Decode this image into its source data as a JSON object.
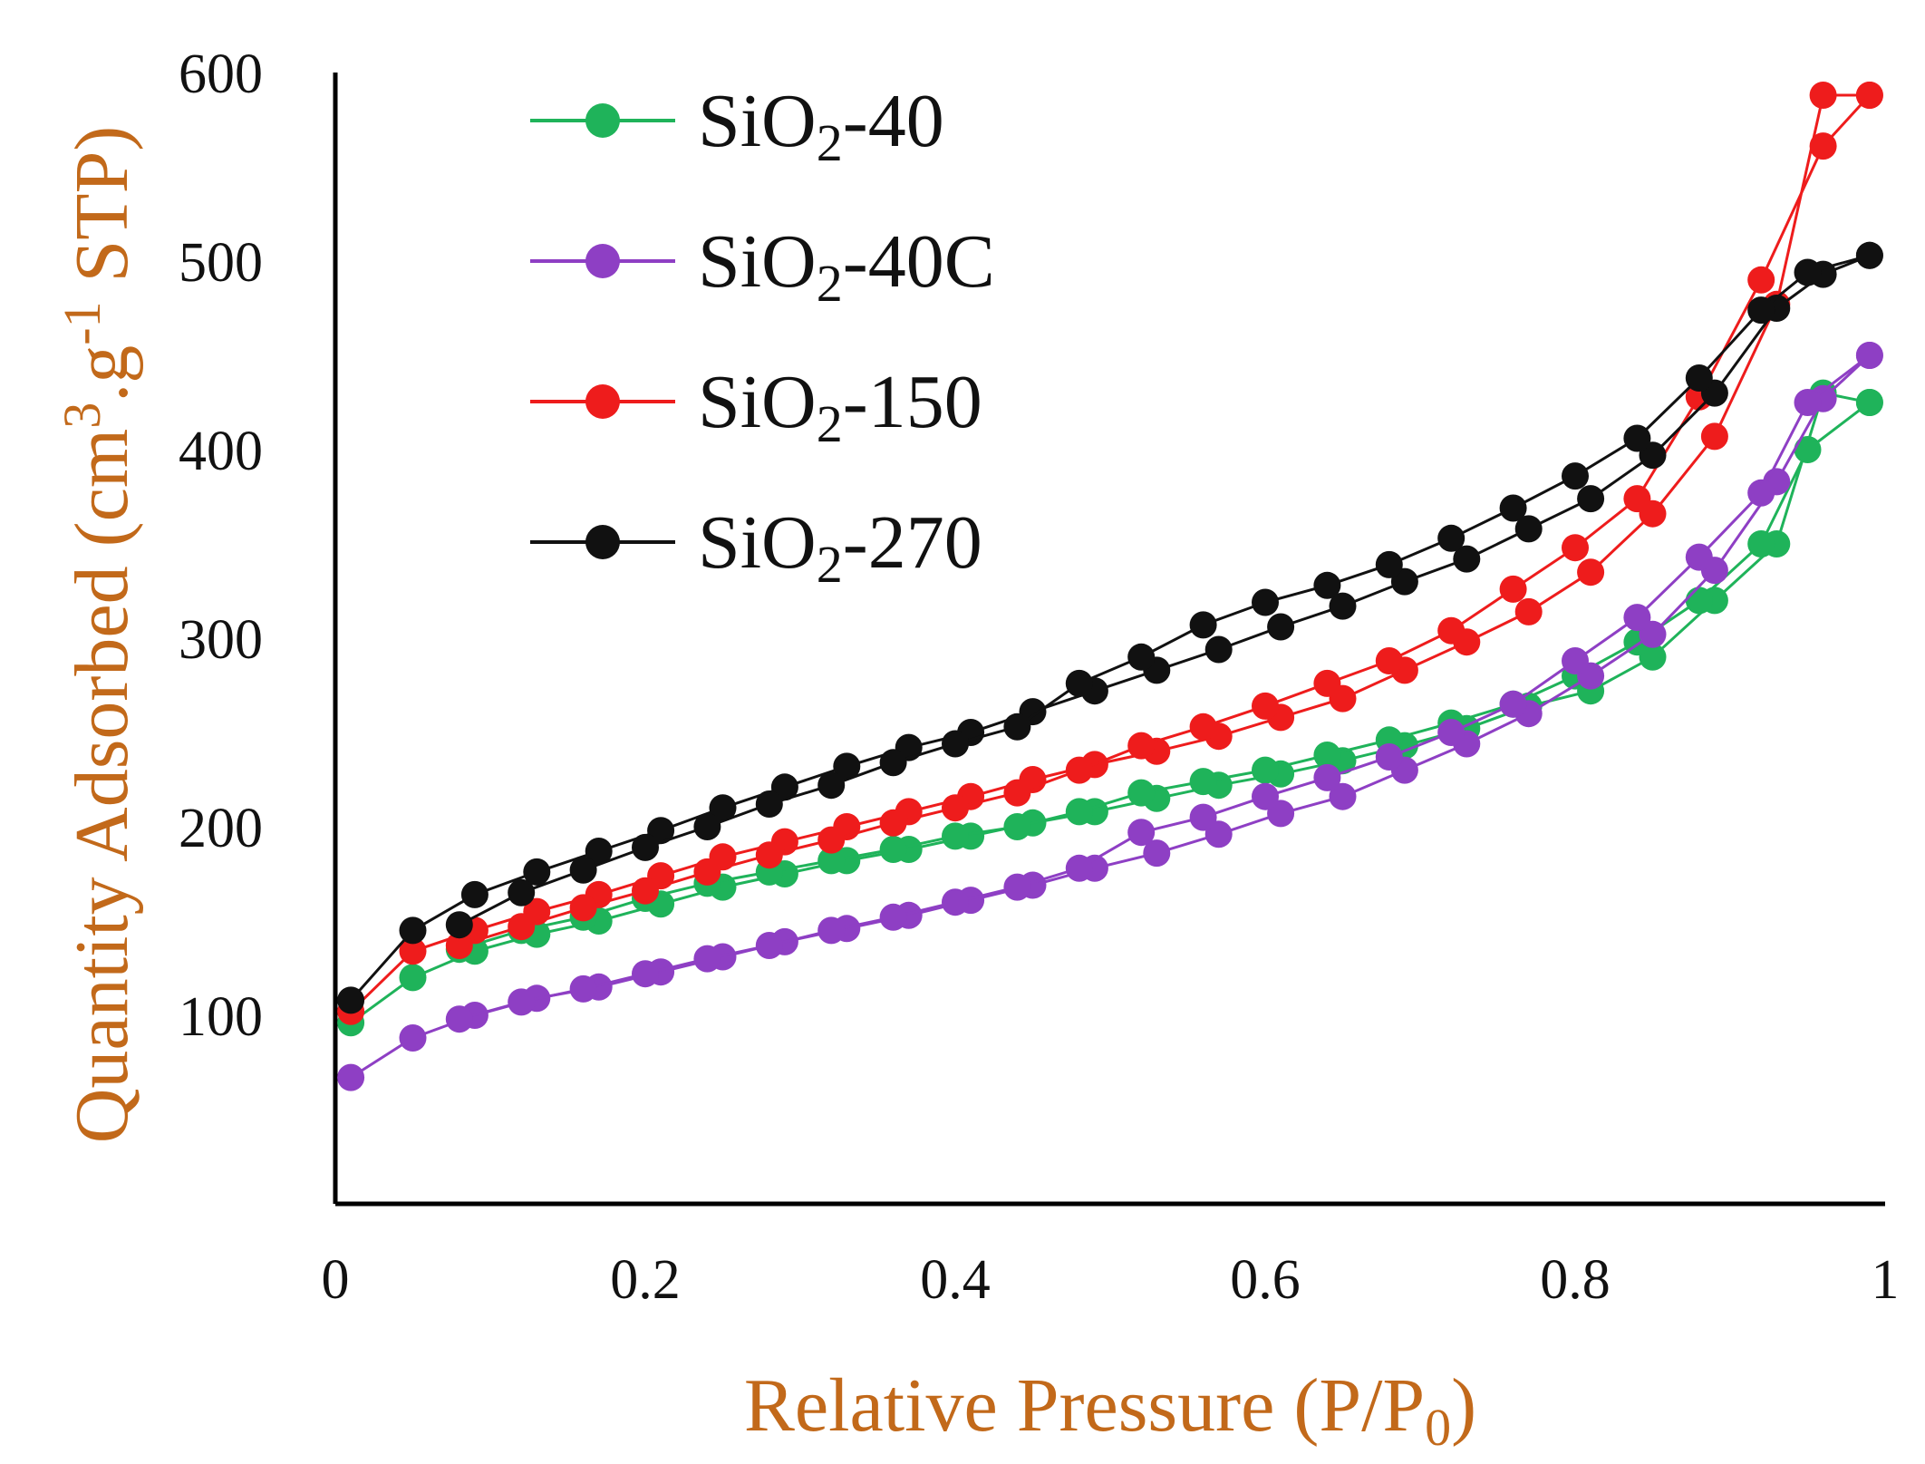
{
  "chart_data": {
    "type": "line",
    "title": "",
    "xlabel": "Relative  Pressure (P/P0)",
    "ylabel": "Quantity  Adsorbed (cm3.g-1 STP)",
    "xlim": [
      0,
      1
    ],
    "ylim": [
      0,
      600
    ],
    "x_ticks": [
      "0",
      "0.2",
      "0.4",
      "0.6",
      "0.8",
      "1"
    ],
    "y_ticks": [
      "100",
      "200",
      "300",
      "400",
      "500",
      "600"
    ],
    "grid": false,
    "legend_position": "top-left",
    "axis_label_color": "#c2691a",
    "x_label_parts": [
      "Relative  Pressure (P/P",
      "0",
      ")"
    ],
    "y_label_parts": [
      "Quantity  Adsorbed (cm",
      "3",
      ".g",
      "-1",
      " STP)"
    ],
    "series": [
      {
        "name": "SiO2-40",
        "label_base": "SiO",
        "label_sub": "2",
        "label_suffix": "-40",
        "color": "#1fb35a",
        "adsorption": [
          [
            0.01,
            96
          ],
          [
            0.05,
            120
          ],
          [
            0.09,
            134
          ],
          [
            0.13,
            143
          ],
          [
            0.17,
            150
          ],
          [
            0.21,
            159
          ],
          [
            0.25,
            168
          ],
          [
            0.29,
            175
          ],
          [
            0.33,
            182
          ],
          [
            0.37,
            188
          ],
          [
            0.41,
            195
          ],
          [
            0.45,
            202
          ],
          [
            0.49,
            208
          ],
          [
            0.53,
            215
          ],
          [
            0.57,
            222
          ],
          [
            0.61,
            228
          ],
          [
            0.65,
            235
          ],
          [
            0.69,
            243
          ],
          [
            0.73,
            252
          ],
          [
            0.77,
            264
          ],
          [
            0.81,
            272
          ],
          [
            0.85,
            290
          ],
          [
            0.89,
            320
          ],
          [
            0.93,
            350
          ],
          [
            0.96,
            430
          ],
          [
            0.99,
            425
          ]
        ],
        "desorption": [
          [
            0.99,
            425
          ],
          [
            0.95,
            400
          ],
          [
            0.92,
            350
          ],
          [
            0.88,
            320
          ],
          [
            0.84,
            298
          ],
          [
            0.8,
            280
          ],
          [
            0.76,
            265
          ],
          [
            0.72,
            255
          ],
          [
            0.68,
            246
          ],
          [
            0.64,
            238
          ],
          [
            0.6,
            230
          ],
          [
            0.56,
            224
          ],
          [
            0.52,
            218
          ],
          [
            0.48,
            208
          ],
          [
            0.44,
            200
          ],
          [
            0.4,
            195
          ],
          [
            0.36,
            188
          ],
          [
            0.32,
            182
          ],
          [
            0.28,
            176
          ],
          [
            0.24,
            170
          ],
          [
            0.2,
            162
          ],
          [
            0.16,
            152
          ],
          [
            0.12,
            145
          ],
          [
            0.08,
            135
          ]
        ]
      },
      {
        "name": "SiO2-40C",
        "label_base": "SiO",
        "label_sub": "2",
        "label_suffix": "-40C",
        "color": "#8e3fc4",
        "adsorption": [
          [
            0.01,
            67
          ],
          [
            0.05,
            88
          ],
          [
            0.09,
            100
          ],
          [
            0.13,
            109
          ],
          [
            0.17,
            115
          ],
          [
            0.21,
            123
          ],
          [
            0.25,
            131
          ],
          [
            0.29,
            139
          ],
          [
            0.33,
            146
          ],
          [
            0.37,
            153
          ],
          [
            0.41,
            161
          ],
          [
            0.45,
            169
          ],
          [
            0.49,
            178
          ],
          [
            0.53,
            186
          ],
          [
            0.57,
            196
          ],
          [
            0.61,
            207
          ],
          [
            0.65,
            216
          ],
          [
            0.69,
            230
          ],
          [
            0.73,
            244
          ],
          [
            0.77,
            260
          ],
          [
            0.81,
            280
          ],
          [
            0.85,
            302
          ],
          [
            0.89,
            336
          ],
          [
            0.93,
            383
          ],
          [
            0.96,
            427
          ],
          [
            0.99,
            450
          ]
        ],
        "desorption": [
          [
            0.99,
            450
          ],
          [
            0.95,
            425
          ],
          [
            0.92,
            377
          ],
          [
            0.88,
            343
          ],
          [
            0.84,
            311
          ],
          [
            0.8,
            288
          ],
          [
            0.76,
            265
          ],
          [
            0.72,
            250
          ],
          [
            0.68,
            237
          ],
          [
            0.64,
            226
          ],
          [
            0.6,
            216
          ],
          [
            0.56,
            205
          ],
          [
            0.52,
            197
          ],
          [
            0.48,
            178
          ],
          [
            0.44,
            168
          ],
          [
            0.4,
            160
          ],
          [
            0.36,
            152
          ],
          [
            0.32,
            145
          ],
          [
            0.28,
            137
          ],
          [
            0.24,
            130
          ],
          [
            0.2,
            122
          ],
          [
            0.16,
            114
          ],
          [
            0.12,
            107
          ],
          [
            0.08,
            98
          ]
        ]
      },
      {
        "name": "SiO2-150",
        "label_base": "SiO",
        "label_sub": "2",
        "label_suffix": "-150",
        "color": "#ee1c1c",
        "adsorption": [
          [
            0.01,
            102
          ],
          [
            0.05,
            134
          ],
          [
            0.09,
            145
          ],
          [
            0.13,
            155
          ],
          [
            0.17,
            164
          ],
          [
            0.21,
            174
          ],
          [
            0.25,
            184
          ],
          [
            0.29,
            192
          ],
          [
            0.33,
            200
          ],
          [
            0.37,
            208
          ],
          [
            0.41,
            216
          ],
          [
            0.45,
            225
          ],
          [
            0.49,
            233
          ],
          [
            0.53,
            240
          ],
          [
            0.57,
            248
          ],
          [
            0.61,
            258
          ],
          [
            0.65,
            268
          ],
          [
            0.69,
            283
          ],
          [
            0.73,
            298
          ],
          [
            0.77,
            314
          ],
          [
            0.81,
            335
          ],
          [
            0.85,
            366
          ],
          [
            0.89,
            407
          ],
          [
            0.93,
            477
          ],
          [
            0.96,
            588
          ],
          [
            0.99,
            588
          ]
        ],
        "desorption": [
          [
            0.99,
            588
          ],
          [
            0.96,
            561
          ],
          [
            0.92,
            490
          ],
          [
            0.88,
            428
          ],
          [
            0.84,
            374
          ],
          [
            0.8,
            348
          ],
          [
            0.76,
            326
          ],
          [
            0.72,
            304
          ],
          [
            0.68,
            288
          ],
          [
            0.64,
            276
          ],
          [
            0.6,
            264
          ],
          [
            0.56,
            253
          ],
          [
            0.52,
            243
          ],
          [
            0.48,
            230
          ],
          [
            0.44,
            218
          ],
          [
            0.4,
            210
          ],
          [
            0.36,
            202
          ],
          [
            0.32,
            193
          ],
          [
            0.28,
            185
          ],
          [
            0.24,
            176
          ],
          [
            0.2,
            166
          ],
          [
            0.16,
            157
          ],
          [
            0.12,
            147
          ],
          [
            0.08,
            137
          ]
        ]
      },
      {
        "name": "SiO2-270",
        "label_base": "SiO",
        "label_sub": "2",
        "label_suffix": "-270",
        "color": "#111111",
        "adsorption": [
          [
            0.01,
            108
          ],
          [
            0.05,
            145
          ],
          [
            0.09,
            164
          ],
          [
            0.13,
            176
          ],
          [
            0.17,
            187
          ],
          [
            0.21,
            198
          ],
          [
            0.25,
            210
          ],
          [
            0.29,
            221
          ],
          [
            0.33,
            232
          ],
          [
            0.37,
            242
          ],
          [
            0.41,
            250
          ],
          [
            0.45,
            261
          ],
          [
            0.49,
            272
          ],
          [
            0.53,
            283
          ],
          [
            0.57,
            294
          ],
          [
            0.61,
            306
          ],
          [
            0.65,
            317
          ],
          [
            0.69,
            330
          ],
          [
            0.73,
            342
          ],
          [
            0.77,
            358
          ],
          [
            0.81,
            374
          ],
          [
            0.85,
            397
          ],
          [
            0.89,
            430
          ],
          [
            0.93,
            475
          ],
          [
            0.96,
            493
          ],
          [
            0.99,
            503
          ]
        ],
        "desorption": [
          [
            0.99,
            503
          ],
          [
            0.95,
            494
          ],
          [
            0.92,
            474
          ],
          [
            0.88,
            438
          ],
          [
            0.84,
            406
          ],
          [
            0.8,
            386
          ],
          [
            0.76,
            369
          ],
          [
            0.72,
            353
          ],
          [
            0.68,
            339
          ],
          [
            0.64,
            328
          ],
          [
            0.6,
            319
          ],
          [
            0.56,
            307
          ],
          [
            0.52,
            290
          ],
          [
            0.48,
            276
          ],
          [
            0.44,
            253
          ],
          [
            0.4,
            244
          ],
          [
            0.36,
            234
          ],
          [
            0.32,
            222
          ],
          [
            0.28,
            212
          ],
          [
            0.24,
            200
          ],
          [
            0.2,
            189
          ],
          [
            0.16,
            177
          ],
          [
            0.12,
            165
          ],
          [
            0.08,
            148
          ]
        ]
      }
    ]
  }
}
